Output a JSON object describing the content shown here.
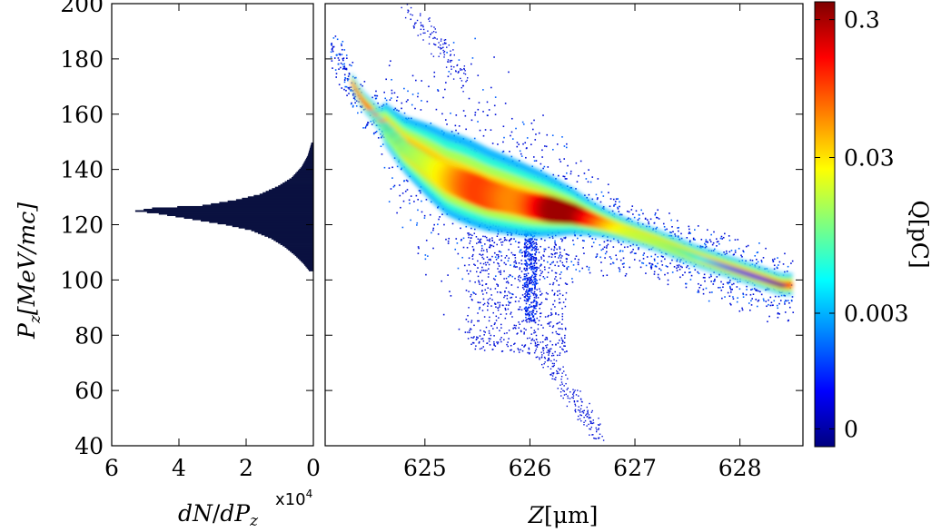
{
  "chart_data": [
    {
      "type": "bar",
      "orientation": "horizontal",
      "xlabel": "dN/dP_z",
      "xlabel_parts": {
        "a": "dN",
        "b": "/",
        "c": "dP",
        "d": "z"
      },
      "x_multiplier": {
        "base": "x10",
        "exp": "4"
      },
      "ylabel": "P_z[MeV/mc]",
      "ylabel_parts": {
        "p": "P",
        "sub": "z",
        "rest": "[MeV/mc]"
      },
      "xlim": [
        6,
        0
      ],
      "ylim": [
        40,
        200
      ],
      "xticks": [
        "6",
        "4",
        "2",
        "0"
      ],
      "yticks": [
        "40",
        "60",
        "80",
        "100",
        "120",
        "140",
        "160",
        "180",
        "200"
      ],
      "bar_color": "#0a1140",
      "profile": [
        {
          "pz": 103,
          "count": 0.1
        },
        {
          "pz": 106,
          "count": 0.3
        },
        {
          "pz": 109,
          "count": 0.55
        },
        {
          "pz": 112,
          "count": 0.85
        },
        {
          "pz": 115,
          "count": 1.25
        },
        {
          "pz": 118,
          "count": 1.85
        },
        {
          "pz": 120,
          "count": 2.6
        },
        {
          "pz": 122,
          "count": 3.6
        },
        {
          "pz": 124,
          "count": 4.6
        },
        {
          "pz": 125,
          "count": 5.3
        },
        {
          "pz": 126,
          "count": 4.8
        },
        {
          "pz": 127,
          "count": 3.3
        },
        {
          "pz": 129,
          "count": 2.3
        },
        {
          "pz": 131,
          "count": 1.6
        },
        {
          "pz": 134,
          "count": 1.05
        },
        {
          "pz": 137,
          "count": 0.65
        },
        {
          "pz": 141,
          "count": 0.35
        },
        {
          "pz": 145,
          "count": 0.17
        },
        {
          "pz": 150,
          "count": 0.05
        }
      ]
    },
    {
      "type": "heatmap",
      "xlabel": "Z[μm]",
      "xlabel_parts": {
        "var": "Z",
        "unit": "[μm]"
      },
      "ylabel": "P_z[MeV/mc]",
      "xlim": [
        624.05,
        628.6
      ],
      "ylim": [
        40,
        200
      ],
      "xticks": [
        "625",
        "626",
        "627",
        "628"
      ],
      "yticks": [
        "40",
        "60",
        "80",
        "100",
        "120",
        "140",
        "160",
        "180",
        "200"
      ],
      "colorbar": {
        "label": "Q[pC]",
        "scale": "log",
        "ticks": [
          "0",
          "0.003",
          "0.03",
          "0.3"
        ],
        "colors": [
          "#00007f",
          "#0000ff",
          "#007fff",
          "#00ffff",
          "#7fff7f",
          "#ffff00",
          "#ff7f00",
          "#ff0000",
          "#7f0000"
        ]
      },
      "ridge": [
        {
          "z": 624.1,
          "pz": 185
        },
        {
          "z": 624.4,
          "pz": 165
        },
        {
          "z": 624.8,
          "pz": 148
        },
        {
          "z": 625.2,
          "pz": 137
        },
        {
          "z": 625.6,
          "pz": 131
        },
        {
          "z": 626.0,
          "pz": 127
        },
        {
          "z": 626.4,
          "pz": 124
        },
        {
          "z": 626.8,
          "pz": 119
        },
        {
          "z": 627.2,
          "pz": 114
        },
        {
          "z": 627.6,
          "pz": 108
        },
        {
          "z": 628.0,
          "pz": 103
        },
        {
          "z": 628.4,
          "pz": 98
        }
      ]
    }
  ]
}
